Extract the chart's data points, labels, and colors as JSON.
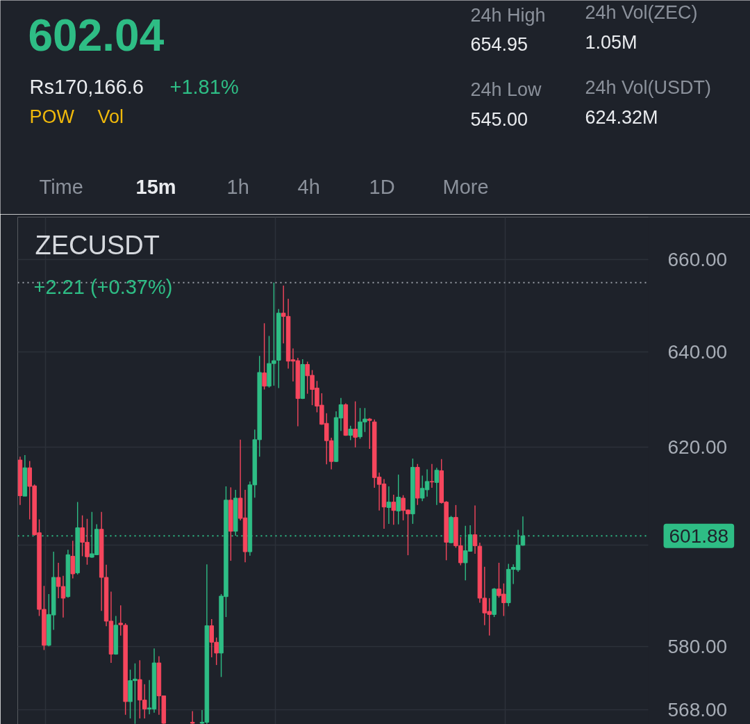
{
  "chart_data": {
    "type": "candlestick",
    "title": "ZECUSDT",
    "subtitle": "+2.21 (+0.37%)",
    "annotations": [
      "602.04",
      "Rs170,166.6",
      "+1.81%",
      "POW",
      "Vol",
      "24h High",
      "654.95",
      "24h Low",
      "545.00",
      "24h Vol(ZEC)",
      "1.05M",
      "24h Vol(USDT)",
      "624.32M",
      "Time",
      "15m",
      "1h",
      "4h",
      "1D",
      "More"
    ],
    "categories": [
      null,
      null,
      null,
      null,
      null,
      null,
      null,
      null,
      null,
      null,
      null,
      null,
      null,
      null,
      null,
      null,
      null,
      null,
      null,
      null,
      null,
      null,
      null,
      null,
      null,
      null,
      null,
      null,
      null,
      null,
      null,
      null,
      null,
      null,
      null,
      null,
      null,
      null,
      null,
      null,
      null,
      null,
      null,
      null,
      null,
      null,
      null,
      null,
      null,
      null,
      null,
      null,
      null,
      null,
      null,
      null,
      null,
      null,
      null,
      null,
      null,
      null,
      null,
      null,
      null,
      null,
      null,
      null,
      null,
      null,
      null,
      null,
      null,
      null,
      null,
      null,
      null,
      null,
      null,
      null,
      null,
      null,
      null,
      null,
      null,
      null,
      null,
      null,
      null,
      null,
      null,
      null,
      null,
      null,
      null,
      null,
      null,
      null,
      null,
      null,
      null,
      null,
      null,
      null,
      null,
      null,
      null,
      null,
      null,
      null,
      null,
      null,
      null,
      null,
      null,
      null,
      null,
      null,
      null,
      null,
      null,
      null,
      null,
      null,
      null,
      null,
      null,
      null,
      null,
      null,
      null,
      null,
      null,
      null,
      null,
      null,
      null,
      null,
      null,
      null,
      null,
      null,
      null,
      null,
      null,
      null,
      null,
      null,
      null,
      null,
      null,
      null,
      null
    ],
    "ohlc": [
      [
        617.3,
        618.0,
        608.1,
        610.0
      ],
      [
        609.9,
        618.3,
        609.9,
        615.7
      ],
      [
        615.7,
        617.1,
        605.2,
        611.9
      ],
      [
        612.0,
        612.3,
        601.9,
        602.1
      ],
      [
        602.5,
        605.2,
        586.0,
        587.3
      ],
      [
        587.3,
        591.9,
        579.4,
        580.3
      ],
      [
        580.3,
        590.3,
        580.1,
        586.3
      ],
      [
        586.2,
        598.7,
        583.3,
        593.6
      ],
      [
        593.6,
        596.5,
        589.5,
        591.8
      ],
      [
        591.8,
        593.9,
        585.7,
        589.5
      ],
      [
        589.8,
        599.1,
        589.6,
        598.1
      ],
      [
        597.8,
        600.9,
        593.4,
        594.3
      ],
      [
        594.5,
        608.7,
        594.2,
        603.5
      ],
      [
        603.5,
        606.0,
        597.8,
        600.6
      ],
      [
        600.6,
        605.3,
        596.1,
        597.7
      ],
      [
        597.6,
        606.7,
        597.5,
        598.3
      ],
      [
        598.1,
        604.2,
        598.0,
        603.2
      ],
      [
        603.2,
        606.7,
        587.0,
        593.6
      ],
      [
        593.6,
        596.1,
        584.0,
        585.0
      ],
      [
        585.0,
        590.8,
        576.9,
        578.6
      ],
      [
        578.6,
        586.0,
        578.5,
        584.2
      ],
      [
        584.6,
        588.1,
        582.2,
        584.3
      ],
      [
        584.2,
        584.6,
        567.0,
        569.5
      ],
      [
        569.5,
        575.6,
        566.3,
        573.5
      ],
      [
        573.5,
        576.8,
        565.3,
        573.8
      ],
      [
        573.7,
        577.4,
        566.3,
        569.8
      ],
      [
        569.8,
        572.8,
        566.3,
        568.1
      ],
      [
        568.1,
        573.6,
        567.1,
        568.3
      ],
      [
        568.1,
        579.7,
        567.4,
        576.9
      ],
      [
        576.9,
        578.2,
        567.0,
        570.6
      ],
      [
        570.6,
        570.6,
        565.3,
        565.4
      ],
      null,
      null,
      null,
      null,
      null,
      [
        565.6,
        567.7,
        565.3,
        565.4
      ],
      null,
      [
        565.4,
        567.9,
        565.3,
        565.6
      ],
      [
        565.6,
        596.2,
        565.3,
        584.1
      ],
      [
        584.1,
        585.4,
        578.0,
        580.9
      ],
      [
        580.9,
        581.8,
        576.5,
        578.8
      ],
      [
        578.8,
        590.3,
        574.2,
        589.9
      ],
      [
        589.8,
        611.9,
        585.8,
        609.1
      ],
      [
        609.1,
        611.7,
        596.9,
        602.8
      ],
      [
        602.8,
        611.2,
        601.9,
        609.5
      ],
      [
        609.5,
        621.5,
        605.0,
        605.4
      ],
      [
        605.5,
        611.2,
        596.6,
        598.7
      ],
      [
        598.7,
        612.9,
        597.9,
        612.2
      ],
      [
        612.2,
        623.6,
        609.6,
        621.5
      ],
      [
        621.5,
        639.1,
        618.0,
        635.6
      ],
      [
        635.5,
        646.1,
        632.0,
        632.7
      ],
      [
        632.7,
        643.4,
        632.4,
        637.5
      ],
      [
        637.5,
        654.95,
        632.8,
        638.1
      ],
      [
        638.2,
        649.2,
        632.3,
        648.3
      ],
      [
        648.3,
        654.3,
        641.8,
        647.6
      ],
      [
        647.6,
        651.4,
        636.4,
        638.0
      ],
      [
        638.3,
        640.7,
        633.7,
        638.0
      ],
      [
        638.1,
        638.7,
        624.3,
        630.1
      ],
      [
        630.1,
        638.4,
        630.0,
        637.3
      ],
      [
        637.3,
        637.9,
        631.1,
        634.9
      ],
      [
        635.0,
        636.1,
        628.7,
        632.0
      ],
      [
        632.3,
        633.8,
        627.2,
        628.5
      ],
      [
        628.7,
        631.2,
        624.6,
        624.7
      ],
      [
        624.9,
        627.0,
        616.4,
        621.3
      ],
      [
        621.3,
        621.9,
        615.4,
        617.0
      ],
      [
        617.0,
        627.4,
        616.9,
        626.1
      ],
      [
        626.0,
        630.2,
        623.3,
        628.8
      ],
      [
        628.8,
        629.1,
        622.3,
        622.4
      ],
      [
        622.4,
        624.4,
        621.4,
        623.7
      ],
      [
        623.7,
        629.5,
        619.9,
        622.0
      ],
      [
        622.1,
        628.1,
        621.7,
        625.2
      ],
      [
        625.2,
        628.1,
        623.1,
        625.8
      ],
      [
        625.8,
        626.0,
        619.6,
        625.5
      ],
      [
        625.2,
        625.7,
        611.6,
        613.7
      ],
      [
        613.8,
        614.7,
        607.0,
        612.3
      ],
      [
        612.4,
        613.4,
        603.3,
        607.7
      ],
      [
        607.6,
        611.9,
        604.3,
        608.7
      ],
      [
        608.7,
        610.2,
        604.1,
        607.0
      ],
      [
        606.9,
        614.3,
        604.2,
        609.7
      ],
      [
        609.5,
        610.1,
        605.0,
        607.0
      ],
      [
        607.1,
        607.2,
        598.0,
        606.3
      ],
      [
        606.3,
        617.6,
        604.3,
        615.8
      ],
      [
        615.8,
        616.5,
        608.1,
        609.5
      ],
      [
        609.5,
        614.1,
        608.9,
        611.5
      ],
      [
        611.2,
        615.4,
        609.8,
        612.9
      ],
      [
        612.9,
        616.5,
        611.6,
        612.8
      ],
      [
        612.7,
        615.7,
        608.1,
        615.2
      ],
      [
        615.1,
        617.5,
        608.4,
        608.6
      ],
      [
        608.7,
        608.9,
        597.0,
        600.6
      ],
      [
        600.5,
        605.9,
        600.4,
        605.6
      ],
      [
        605.6,
        608.1,
        599.5,
        599.9
      ],
      [
        599.9,
        601.6,
        596.0,
        596.5
      ],
      [
        596.5,
        603.9,
        593.0,
        598.9
      ],
      [
        598.8,
        604.0,
        598.7,
        602.1
      ],
      [
        602.1,
        608.0,
        598.3,
        599.9
      ],
      [
        599.8,
        600.5,
        588.6,
        589.5
      ],
      [
        589.5,
        595.7,
        584.2,
        586.6
      ],
      [
        586.9,
        589.5,
        582.2,
        586.3
      ],
      [
        586.3,
        591.5,
        585.8,
        591.3
      ],
      [
        591.3,
        596.5,
        589.6,
        590.0
      ],
      [
        590.3,
        592.4,
        586.0,
        588.6
      ],
      [
        588.6,
        596.3,
        587.9,
        595.2
      ],
      [
        595.2,
        596.2,
        592.3,
        595.6
      ],
      [
        595.1,
        603.1,
        594.7,
        600.0
      ],
      [
        600.0,
        605.8,
        599.9,
        601.88
      ],
      null,
      null,
      null,
      null,
      null,
      null,
      null,
      null,
      null,
      null,
      null,
      null,
      null,
      null,
      null,
      null,
      null,
      null,
      null,
      null,
      null,
      null,
      null,
      null,
      null,
      null,
      null,
      null,
      null,
      null,
      null,
      null,
      null,
      null,
      null,
      null,
      null,
      null,
      null,
      null,
      null,
      null,
      null,
      null,
      null,
      null,
      null
    ],
    "colors": [
      "#f6465d",
      "#2ebd85",
      "#f6465d",
      "#f6465d",
      "#f6465d",
      "#f6465d",
      "#2ebd85",
      "#2ebd85",
      "#f6465d",
      "#f6465d",
      "#2ebd85",
      "#f6465d",
      "#2ebd85",
      "#f6465d",
      "#f6465d",
      "#2ebd85",
      "#2ebd85",
      "#f6465d",
      "#f6465d",
      "#f6465d",
      "#2ebd85",
      "#f6465d",
      "#f6465d",
      "#2ebd85",
      "#2ebd85",
      "#f6465d",
      "#f6465d",
      "#2ebd85",
      "#2ebd85",
      "#f6465d",
      "#f6465d",
      null,
      null,
      null,
      null,
      null,
      "#f6465d",
      null,
      "#2ebd85",
      "#2ebd85",
      "#f6465d",
      "#f6465d",
      "#2ebd85",
      "#2ebd85",
      "#f6465d",
      "#2ebd85",
      "#f6465d",
      "#f6465d",
      "#2ebd85",
      "#2ebd85",
      "#2ebd85",
      "#f6465d",
      "#2ebd85",
      "#2ebd85",
      "#2ebd85",
      "#f6465d",
      "#f6465d",
      "#f6465d",
      "#f6465d",
      "#2ebd85",
      "#f6465d",
      "#f6465d",
      "#f6465d",
      "#f6465d",
      "#f6465d",
      "#f6465d",
      "#2ebd85",
      "#2ebd85",
      "#f6465d",
      "#2ebd85",
      "#f6465d",
      "#2ebd85",
      "#2ebd85",
      "#f6465d",
      "#f6465d",
      "#f6465d",
      "#f6465d",
      "#2ebd85",
      "#f6465d",
      "#2ebd85",
      "#f6465d",
      "#f6465d",
      "#2ebd85",
      "#f6465d",
      "#2ebd85",
      "#2ebd85",
      "#f6465d",
      "#2ebd85",
      "#f6465d",
      "#f6465d",
      "#2ebd85",
      "#f6465d",
      "#f6465d",
      "#2ebd85",
      "#2ebd85",
      "#f6465d",
      "#f6465d",
      "#f6465d",
      "#f6465d",
      "#2ebd85",
      "#f6465d",
      "#f6465d",
      "#2ebd85",
      "#2ebd85",
      "#2ebd85",
      "#2ebd85",
      null,
      null,
      null,
      null,
      null,
      null,
      null,
      null,
      null,
      null,
      null,
      null,
      null,
      null,
      null,
      null,
      null,
      null,
      null,
      null,
      null,
      null,
      null,
      null,
      null,
      null,
      null,
      null,
      null,
      null,
      null,
      null,
      null,
      null,
      null,
      null,
      null,
      null,
      null,
      null,
      null,
      null,
      null,
      null,
      null,
      null,
      null
    ],
    "ylim": [
      565.2,
      669.4
    ],
    "yticks": [
      {
        "value": 568,
        "label": "568.00"
      },
      {
        "value": 580,
        "label": "580.00"
      },
      {
        "value": 600,
        "label": null
      },
      {
        "value": 620,
        "label": "620.00"
      },
      {
        "value": 640,
        "label": "640.00"
      },
      {
        "value": 660,
        "label": "660.00"
      }
    ],
    "log": true,
    "grid": true,
    "ref_lines": [
      {
        "axis": "y",
        "value": 654.95,
        "color": "#9aa0a8",
        "line_style": "dotted"
      },
      {
        "axis": "y",
        "value": 601.88,
        "label": "601.88",
        "color": "#2ebd85",
        "line_style": "dotted"
      }
    ]
  }
}
